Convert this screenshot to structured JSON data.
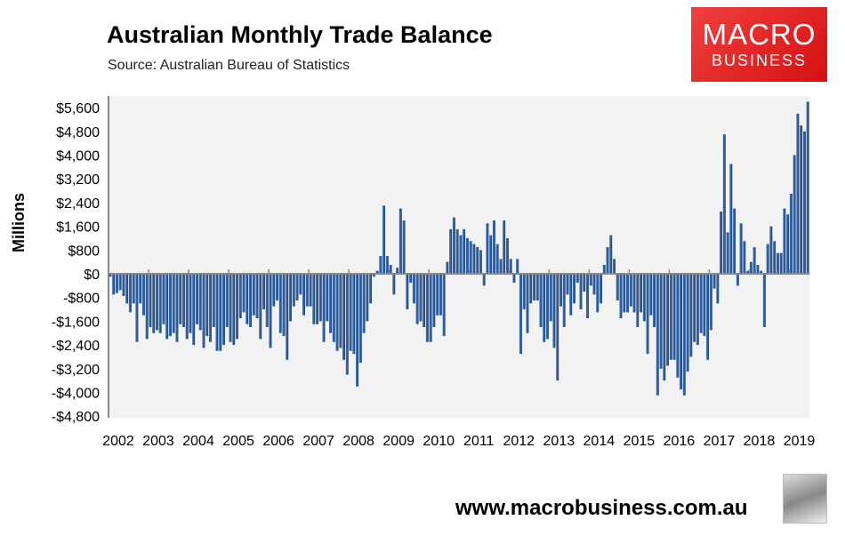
{
  "chart_data": {
    "type": "bar",
    "title": "Australian Monthly Trade Balance",
    "subtitle": "Source: Australian Bureau of Statistics",
    "ylabel": "Millions",
    "xlabel": "",
    "ylim": [
      -4800,
      5800
    ],
    "yticks": [
      -4800,
      -4000,
      -3200,
      -2400,
      -1600,
      -800,
      0,
      800,
      1600,
      2400,
      3200,
      4000,
      4800,
      5600
    ],
    "ytick_labels": [
      "-$4,800",
      "-$4,000",
      "-$3,200",
      "-$2,400",
      "-$1,600",
      "-$800",
      "$0",
      "$800",
      "$1,600",
      "$2,400",
      "$3,200",
      "$4,000",
      "$4,800",
      "$5,600"
    ],
    "xtick_labels": [
      "2002",
      "2003",
      "2004",
      "2005",
      "2006",
      "2007",
      "2008",
      "2009",
      "2010",
      "2011",
      "2012",
      "2013",
      "2014",
      "2015",
      "2016",
      "2017",
      "2018",
      "2019"
    ],
    "start": "2002-01",
    "frequency": "monthly",
    "values": [
      -100,
      -700,
      -650,
      -550,
      -750,
      -1000,
      -1300,
      -1000,
      -2300,
      -1000,
      -1400,
      -2200,
      -1800,
      -2000,
      -1900,
      -2000,
      -1700,
      -2200,
      -2100,
      -2000,
      -2300,
      -1700,
      -1800,
      -2200,
      -2000,
      -2400,
      -1700,
      -1900,
      -2500,
      -2100,
      -2300,
      -1800,
      -2600,
      -2600,
      -2400,
      -1800,
      -2300,
      -2400,
      -2200,
      -1500,
      -1300,
      -1700,
      -1800,
      -1400,
      -1500,
      -2200,
      -1200,
      -1800,
      -2500,
      -1100,
      -900,
      -2000,
      -2100,
      -2900,
      -1600,
      -1100,
      -900,
      -700,
      -1400,
      -1100,
      -1100,
      -1700,
      -1700,
      -1600,
      -2300,
      -1600,
      -2000,
      -2300,
      -2600,
      -2500,
      -2900,
      -3400,
      -2600,
      -2700,
      -3800,
      -3000,
      -2000,
      -1600,
      -1000,
      -100,
      100,
      600,
      2300,
      600,
      300,
      -700,
      200,
      2200,
      1800,
      -1200,
      -300,
      -1000,
      -1700,
      -1600,
      -1800,
      -2300,
      -2300,
      -1800,
      -1400,
      -1400,
      -2100,
      400,
      1500,
      1900,
      1500,
      1300,
      1500,
      1200,
      1100,
      1000,
      900,
      800,
      -400,
      1700,
      1300,
      1800,
      1000,
      500,
      1800,
      1200,
      500,
      -300,
      500,
      -2700,
      -1200,
      -2000,
      -1000,
      -900,
      -900,
      -1800,
      -2300,
      -2200,
      -1600,
      -2500,
      -3600,
      -1100,
      -1800,
      -700,
      -1400,
      -1000,
      -300,
      -1200,
      -600,
      -1500,
      -400,
      -700,
      -1300,
      -1000,
      300,
      900,
      1300,
      500,
      -900,
      -1500,
      -1300,
      -1300,
      -1100,
      -1300,
      -1800,
      -1300,
      -1600,
      -2700,
      -1400,
      -1800,
      -4100,
      -3200,
      -3600,
      -3100,
      -2900,
      -2900,
      -3500,
      -3900,
      -4100,
      -3300,
      -2800,
      -2300,
      -2400,
      -2000,
      -2100,
      -2900,
      -1900,
      -500,
      -1000,
      2100,
      4700,
      1400,
      3700,
      2200,
      -400,
      1700,
      1100,
      100,
      400,
      900,
      300,
      100,
      -1800,
      1000,
      1600,
      1100,
      700,
      700,
      2200,
      2000,
      2700,
      4000,
      5400,
      5000,
      4800,
      5800
    ],
    "bar_color": "#2e5e9e",
    "grid": false,
    "legend": "none"
  },
  "branding": {
    "logo_line1": "MACRO",
    "logo_line2": "BUSINESS",
    "url": "www.macrobusiness.com.au",
    "logo_color": "#e02020"
  }
}
